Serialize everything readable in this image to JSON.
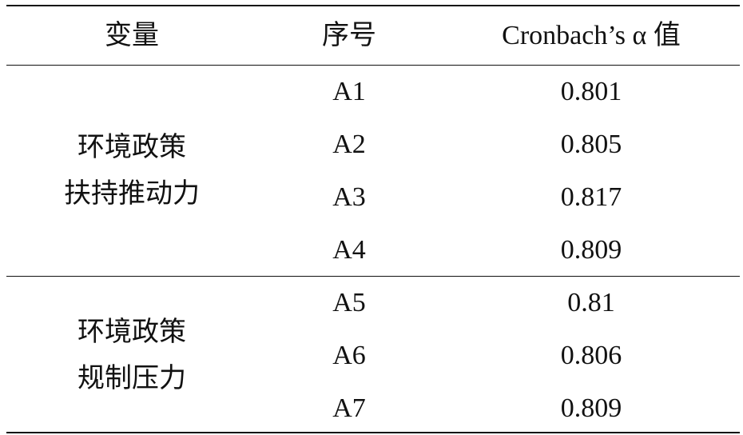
{
  "table": {
    "header": [
      "变量",
      "序号",
      "Cronbach’s α 值"
    ],
    "groups": [
      {
        "variable": [
          "环境政策",
          "扶持推动力"
        ],
        "rows": [
          [
            "A1",
            0.801
          ],
          [
            "A2",
            0.805
          ],
          [
            "A3",
            0.817
          ],
          [
            "A4",
            0.809
          ]
        ]
      },
      {
        "variable": [
          "环境政策",
          "规制压力"
        ],
        "rows": [
          [
            "A5",
            0.81
          ],
          [
            "A6",
            0.806
          ],
          [
            "A7",
            0.809
          ]
        ]
      }
    ]
  }
}
